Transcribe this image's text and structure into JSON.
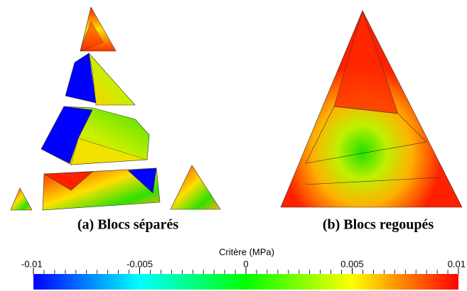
{
  "figure": {
    "panels": [
      {
        "caption": "(a) Blocs séparés"
      },
      {
        "caption": "(b) Blocs regoupés"
      }
    ],
    "colorbar": {
      "title": "Critère (MPa)",
      "lim": [
        -0.01,
        0.01
      ],
      "ticks": [
        -0.01,
        -0.005,
        0,
        0.005,
        0.01
      ]
    }
  }
}
